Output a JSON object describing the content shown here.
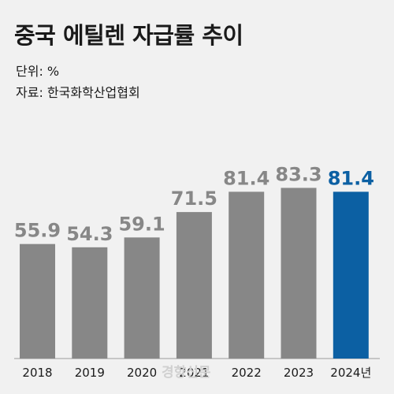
{
  "title": "중국 에틸렌 자급률 추이",
  "unit_line": "단위: %",
  "source_line": "자료: 한국화학산업협회",
  "watermark": "경향신문",
  "colors": {
    "background": "#f1f1f1",
    "bar": "#878787",
    "highlight": "#0c60a3",
    "text": "#1a1a1a"
  },
  "chart_data": {
    "type": "bar",
    "categories": [
      "2018",
      "2019",
      "2020",
      "2021",
      "2022",
      "2023",
      "2024년"
    ],
    "values": [
      55.9,
      54.3,
      59.1,
      71.5,
      81.4,
      83.3,
      81.4
    ],
    "highlight_index": 6,
    "title": "중국 에틸렌 자급률 추이",
    "xlabel": "",
    "ylabel": "",
    "unit": "%",
    "grid": false,
    "legend": "none"
  }
}
